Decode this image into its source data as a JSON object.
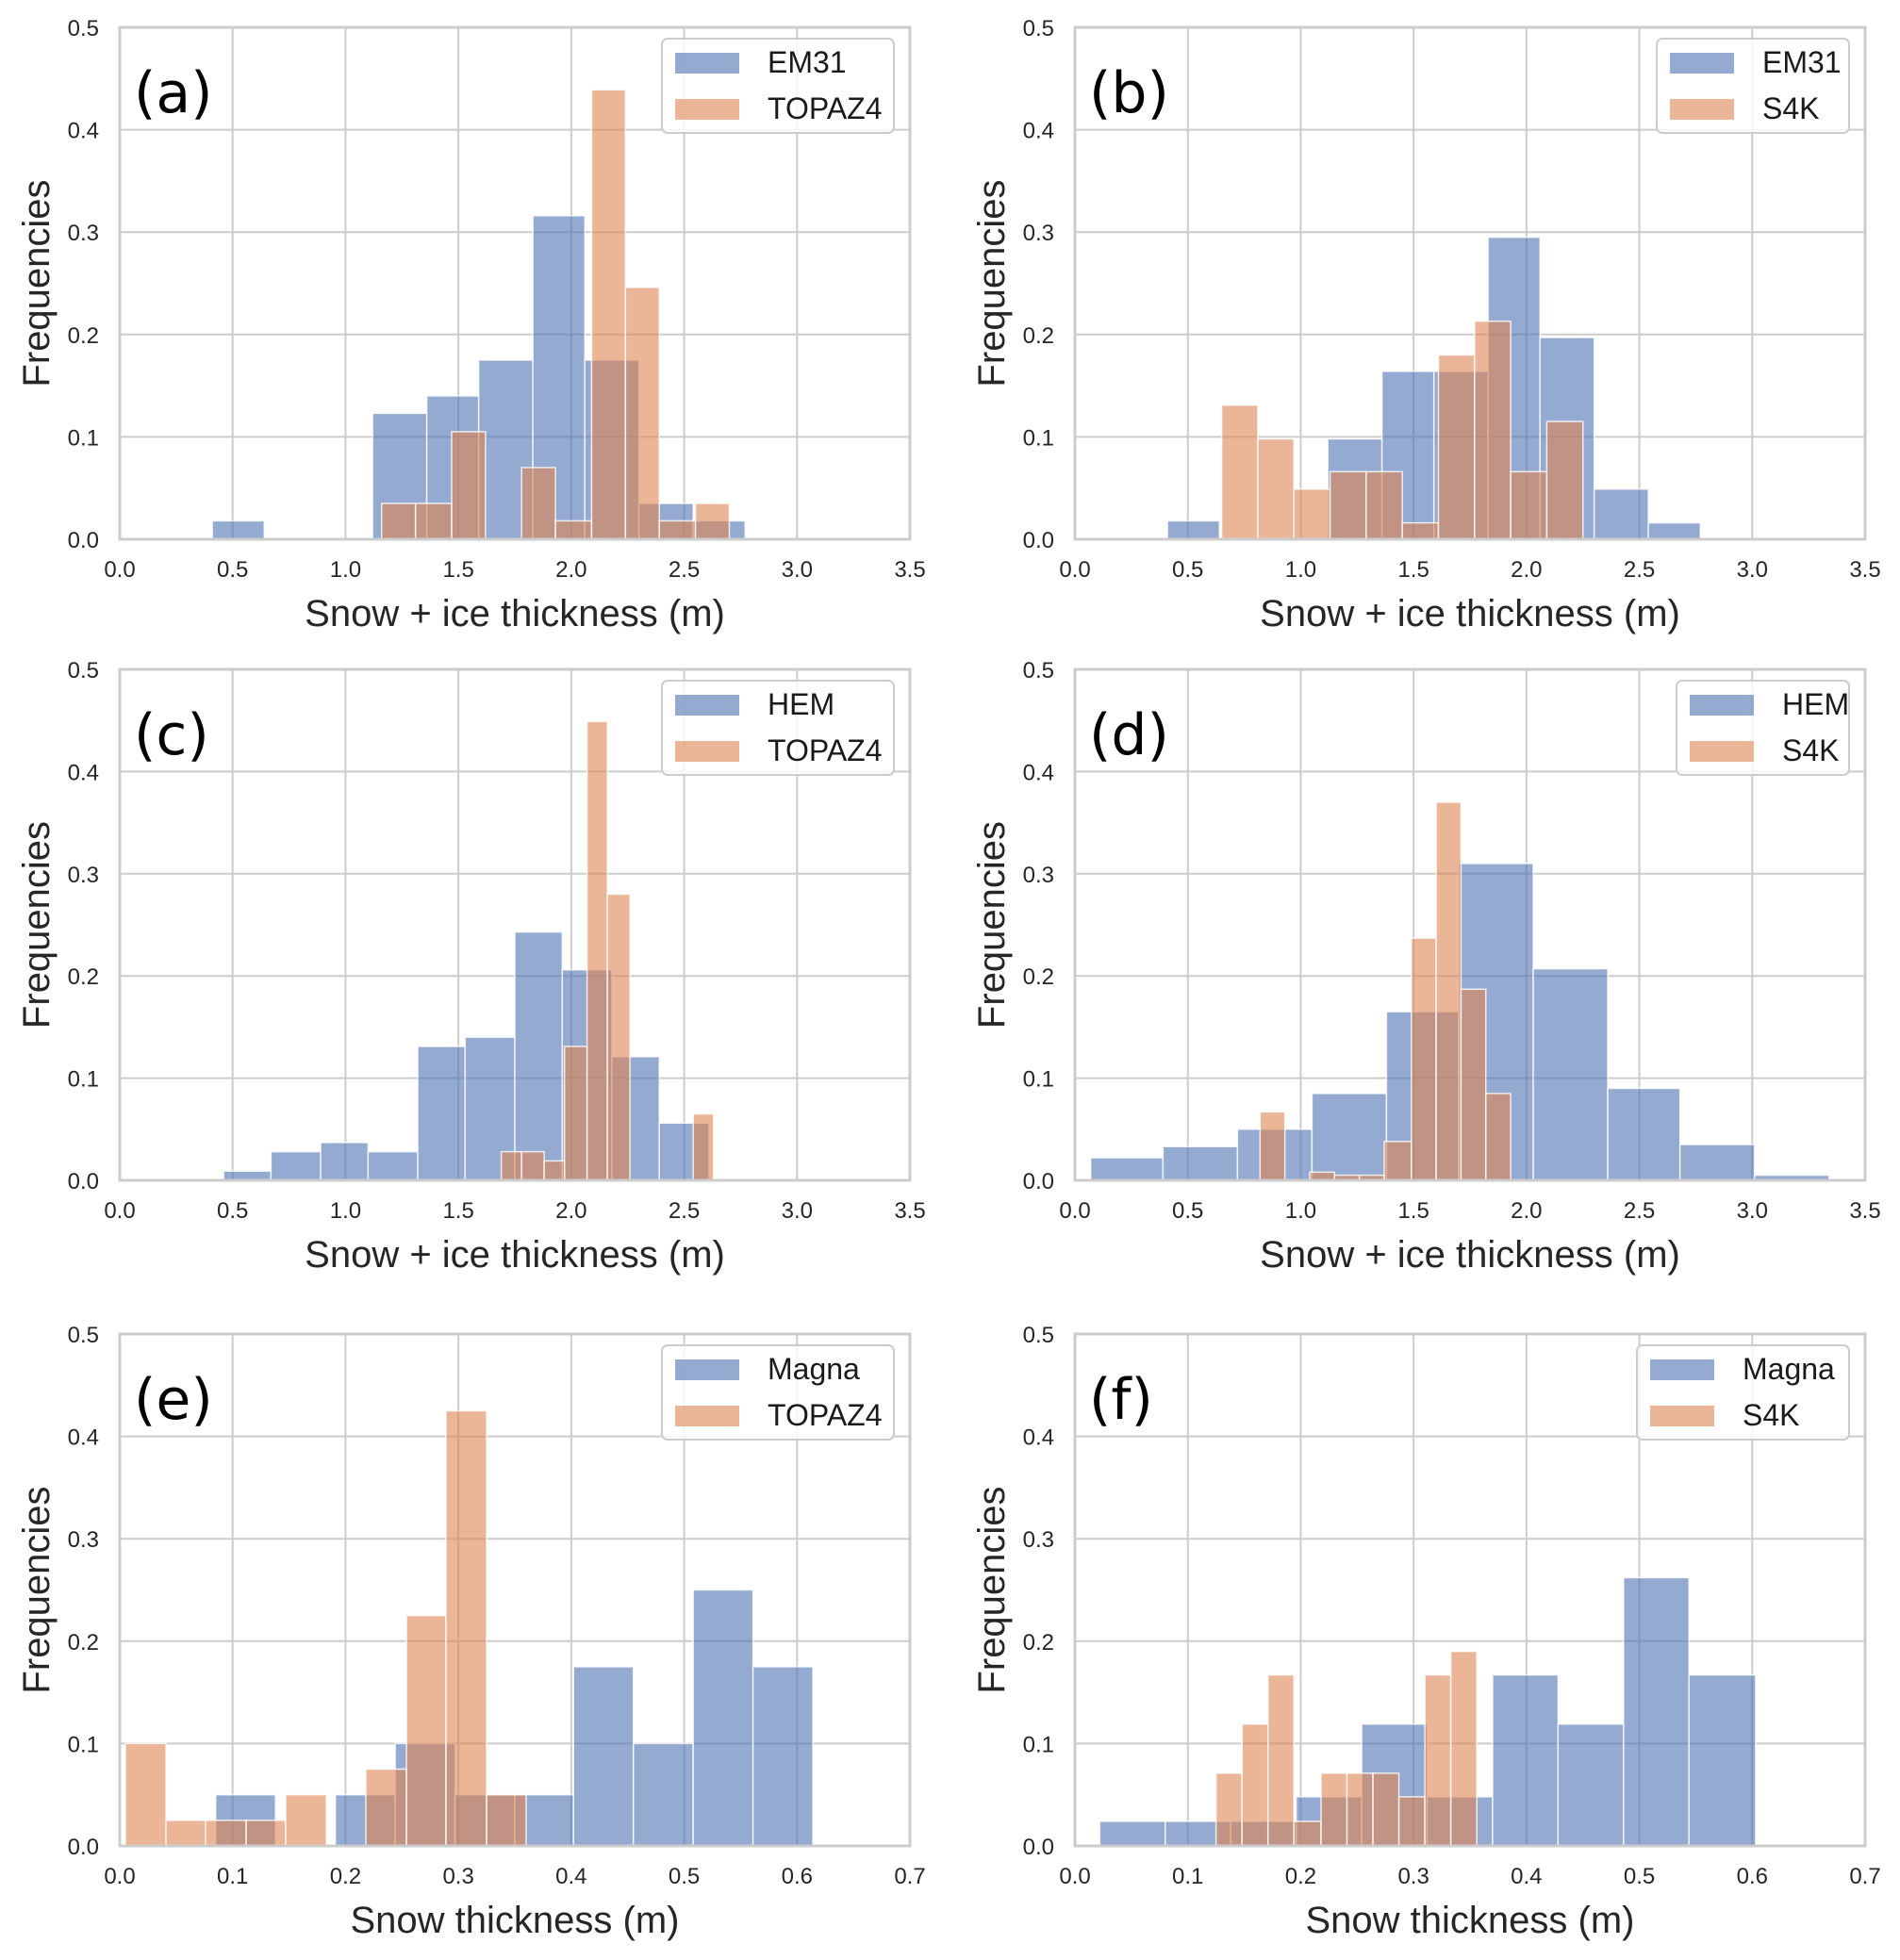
{
  "colors": {
    "series_a": "#4c72b0",
    "series_b": "#dd8452",
    "grid": "#cccccc",
    "frame": "#cccccc"
  },
  "chart_data": [
    {
      "type": "bar",
      "subtype": "histogram",
      "panel_label": "(a)",
      "xlabel": "Snow + ice thickness (m)",
      "ylabel": "Frequencies",
      "xlim": [
        0.0,
        3.5
      ],
      "ylim": [
        0.0,
        0.5
      ],
      "xticks": [
        "0.0",
        "0.5",
        "1.0",
        "1.5",
        "2.0",
        "2.5",
        "3.0",
        "3.5"
      ],
      "yticks": [
        "0.0",
        "0.1",
        "0.2",
        "0.3",
        "0.4",
        "0.5"
      ],
      "grid": true,
      "legend_position": "top-right",
      "series": [
        {
          "name": "EM31",
          "bins": [
            [
              0.41,
              0.64,
              0.018
            ],
            [
              0.64,
              0.88,
              0.0
            ],
            [
              0.88,
              1.12,
              0.0
            ],
            [
              1.12,
              1.36,
              0.123
            ],
            [
              1.36,
              1.59,
              0.14
            ],
            [
              1.59,
              1.83,
              0.175
            ],
            [
              1.83,
              2.06,
              0.316
            ],
            [
              2.06,
              2.3,
              0.175
            ],
            [
              2.3,
              2.54,
              0.035
            ],
            [
              2.54,
              2.77,
              0.018
            ]
          ]
        },
        {
          "name": "TOPAZ4",
          "bins": [
            [
              1.16,
              1.31,
              0.035
            ],
            [
              1.31,
              1.47,
              0.035
            ],
            [
              1.47,
              1.62,
              0.105
            ],
            [
              1.62,
              1.78,
              0.0
            ],
            [
              1.78,
              1.93,
              0.07
            ],
            [
              1.93,
              2.09,
              0.018
            ],
            [
              2.09,
              2.24,
              0.439
            ],
            [
              2.24,
              2.39,
              0.246
            ],
            [
              2.39,
              2.55,
              0.018
            ],
            [
              2.55,
              2.7,
              0.035
            ]
          ]
        }
      ]
    },
    {
      "type": "bar",
      "subtype": "histogram",
      "panel_label": "(b)",
      "xlabel": "Snow + ice thickness (m)",
      "ylabel": "Frequencies",
      "xlim": [
        0.0,
        3.5
      ],
      "ylim": [
        0.0,
        0.5
      ],
      "xticks": [
        "0.0",
        "0.5",
        "1.0",
        "1.5",
        "2.0",
        "2.5",
        "3.0",
        "3.5"
      ],
      "yticks": [
        "0.0",
        "0.1",
        "0.2",
        "0.3",
        "0.4",
        "0.5"
      ],
      "grid": true,
      "legend_position": "top-right",
      "series": [
        {
          "name": "EM31",
          "bins": [
            [
              0.41,
              0.64,
              0.018
            ],
            [
              0.64,
              0.88,
              0.0
            ],
            [
              0.88,
              1.12,
              0.0
            ],
            [
              1.12,
              1.36,
              0.098
            ],
            [
              1.36,
              1.59,
              0.164
            ],
            [
              1.59,
              1.83,
              0.164
            ],
            [
              1.83,
              2.06,
              0.295
            ],
            [
              2.06,
              2.3,
              0.197
            ],
            [
              2.3,
              2.54,
              0.049
            ],
            [
              2.54,
              2.77,
              0.016
            ]
          ]
        },
        {
          "name": "S4K",
          "bins": [
            [
              0.65,
              0.81,
              0.131
            ],
            [
              0.81,
              0.97,
              0.098
            ],
            [
              0.97,
              1.13,
              0.049
            ],
            [
              1.13,
              1.29,
              0.066
            ],
            [
              1.29,
              1.45,
              0.066
            ],
            [
              1.45,
              1.61,
              0.016
            ],
            [
              1.61,
              1.77,
              0.18
            ],
            [
              1.77,
              1.93,
              0.213
            ],
            [
              1.93,
              2.09,
              0.066
            ],
            [
              2.09,
              2.25,
              0.115
            ]
          ]
        }
      ]
    },
    {
      "type": "bar",
      "subtype": "histogram",
      "panel_label": "(c)",
      "xlabel": "Snow + ice thickness (m)",
      "ylabel": "Frequencies",
      "xlim": [
        0.0,
        3.5
      ],
      "ylim": [
        0.0,
        0.5
      ],
      "xticks": [
        "0.0",
        "0.5",
        "1.0",
        "1.5",
        "2.0",
        "2.5",
        "3.0",
        "3.5"
      ],
      "yticks": [
        "0.0",
        "0.1",
        "0.2",
        "0.3",
        "0.4",
        "0.5"
      ],
      "grid": true,
      "legend_position": "top-right",
      "series": [
        {
          "name": "HEM",
          "bins": [
            [
              0.46,
              0.67,
              0.009
            ],
            [
              0.67,
              0.89,
              0.028
            ],
            [
              0.89,
              1.1,
              0.037
            ],
            [
              1.1,
              1.32,
              0.028
            ],
            [
              1.32,
              1.53,
              0.131
            ],
            [
              1.53,
              1.75,
              0.14
            ],
            [
              1.75,
              1.96,
              0.243
            ],
            [
              1.96,
              2.18,
              0.206
            ],
            [
              2.18,
              2.39,
              0.121
            ],
            [
              2.39,
              2.61,
              0.056
            ]
          ]
        },
        {
          "name": "TOPAZ4",
          "bins": [
            [
              1.69,
              1.78,
              0.028
            ],
            [
              1.78,
              1.88,
              0.028
            ],
            [
              1.88,
              1.97,
              0.019
            ],
            [
              1.97,
              2.07,
              0.131
            ],
            [
              2.07,
              2.16,
              0.449
            ],
            [
              2.16,
              2.26,
              0.28
            ],
            [
              2.26,
              2.35,
              0.0
            ],
            [
              2.35,
              2.45,
              0.0
            ],
            [
              2.45,
              2.54,
              0.0
            ],
            [
              2.54,
              2.63,
              0.065
            ]
          ]
        }
      ]
    },
    {
      "type": "bar",
      "subtype": "histogram",
      "panel_label": "(d)",
      "xlabel": "Snow + ice thickness (m)",
      "ylabel": "Frequencies",
      "xlim": [
        0.0,
        3.5
      ],
      "ylim": [
        0.0,
        0.5
      ],
      "xticks": [
        "0.0",
        "0.5",
        "1.0",
        "1.5",
        "2.0",
        "2.5",
        "3.0",
        "3.5"
      ],
      "yticks": [
        "0.0",
        "0.1",
        "0.2",
        "0.3",
        "0.4",
        "0.5"
      ],
      "grid": true,
      "legend_position": "top-right",
      "series": [
        {
          "name": "HEM",
          "bins": [
            [
              0.07,
              0.39,
              0.022
            ],
            [
              0.39,
              0.72,
              0.033
            ],
            [
              0.72,
              1.05,
              0.05
            ],
            [
              1.05,
              1.38,
              0.085
            ],
            [
              1.38,
              1.7,
              0.165
            ],
            [
              1.7,
              2.03,
              0.31
            ],
            [
              2.03,
              2.36,
              0.207
            ],
            [
              2.36,
              2.68,
              0.09
            ],
            [
              2.68,
              3.01,
              0.035
            ],
            [
              3.01,
              3.34,
              0.005
            ]
          ]
        },
        {
          "name": "S4K",
          "bins": [
            [
              0.82,
              0.93,
              0.067
            ],
            [
              0.93,
              1.04,
              0.0
            ],
            [
              1.04,
              1.15,
              0.008
            ],
            [
              1.15,
              1.26,
              0.005
            ],
            [
              1.26,
              1.37,
              0.005
            ],
            [
              1.37,
              1.49,
              0.038
            ],
            [
              1.49,
              1.6,
              0.237
            ],
            [
              1.6,
              1.71,
              0.37
            ],
            [
              1.71,
              1.82,
              0.187
            ],
            [
              1.82,
              1.93,
              0.085
            ]
          ]
        }
      ]
    },
    {
      "type": "bar",
      "subtype": "histogram",
      "panel_label": "(e)",
      "xlabel": "Snow thickness (m)",
      "ylabel": "Frequencies",
      "xlim": [
        0.0,
        0.7
      ],
      "ylim": [
        0.0,
        0.5
      ],
      "xticks": [
        "0.0",
        "0.1",
        "0.2",
        "0.3",
        "0.4",
        "0.5",
        "0.6",
        "0.7"
      ],
      "yticks": [
        "0.0",
        "0.1",
        "0.2",
        "0.3",
        "0.4",
        "0.5"
      ],
      "grid": true,
      "legend_position": "top-right",
      "series": [
        {
          "name": "Magna",
          "bins": [
            [
              0.085,
              0.138,
              0.05
            ],
            [
              0.138,
              0.191,
              0.0
            ],
            [
              0.191,
              0.244,
              0.05
            ],
            [
              0.244,
              0.297,
              0.1
            ],
            [
              0.297,
              0.35,
              0.05
            ],
            [
              0.35,
              0.402,
              0.05
            ],
            [
              0.402,
              0.455,
              0.175
            ],
            [
              0.455,
              0.508,
              0.1
            ],
            [
              0.508,
              0.561,
              0.25
            ],
            [
              0.561,
              0.614,
              0.175
            ]
          ]
        },
        {
          "name": "TOPAZ4",
          "bins": [
            [
              0.005,
              0.041,
              0.1
            ],
            [
              0.041,
              0.076,
              0.025
            ],
            [
              0.076,
              0.112,
              0.025
            ],
            [
              0.112,
              0.147,
              0.025
            ],
            [
              0.147,
              0.183,
              0.05
            ],
            [
              0.183,
              0.218,
              0.0
            ],
            [
              0.218,
              0.254,
              0.075
            ],
            [
              0.254,
              0.289,
              0.225
            ],
            [
              0.289,
              0.325,
              0.425
            ],
            [
              0.325,
              0.36,
              0.05
            ]
          ]
        }
      ]
    },
    {
      "type": "bar",
      "subtype": "histogram",
      "panel_label": "(f)",
      "xlabel": "Snow thickness (m)",
      "ylabel": "Frequencies",
      "xlim": [
        0.0,
        0.7
      ],
      "ylim": [
        0.0,
        0.5
      ],
      "xticks": [
        "0.0",
        "0.1",
        "0.2",
        "0.3",
        "0.4",
        "0.5",
        "0.6",
        "0.7"
      ],
      "yticks": [
        "0.0",
        "0.1",
        "0.2",
        "0.3",
        "0.4",
        "0.5"
      ],
      "grid": true,
      "legend_position": "top-right",
      "series": [
        {
          "name": "Magna",
          "bins": [
            [
              0.022,
              0.08,
              0.024
            ],
            [
              0.08,
              0.138,
              0.024
            ],
            [
              0.138,
              0.196,
              0.024
            ],
            [
              0.196,
              0.254,
              0.048
            ],
            [
              0.254,
              0.312,
              0.119
            ],
            [
              0.312,
              0.37,
              0.048
            ],
            [
              0.37,
              0.428,
              0.167
            ],
            [
              0.428,
              0.486,
              0.119
            ],
            [
              0.486,
              0.544,
              0.262
            ],
            [
              0.544,
              0.603,
              0.167
            ]
          ]
        },
        {
          "name": "S4K",
          "bins": [
            [
              0.125,
              0.148,
              0.071
            ],
            [
              0.148,
              0.171,
              0.119
            ],
            [
              0.171,
              0.194,
              0.167
            ],
            [
              0.194,
              0.218,
              0.024
            ],
            [
              0.218,
              0.241,
              0.071
            ],
            [
              0.241,
              0.264,
              0.071
            ],
            [
              0.264,
              0.287,
              0.071
            ],
            [
              0.287,
              0.31,
              0.048
            ],
            [
              0.31,
              0.333,
              0.167
            ],
            [
              0.333,
              0.356,
              0.19
            ]
          ]
        }
      ]
    }
  ]
}
